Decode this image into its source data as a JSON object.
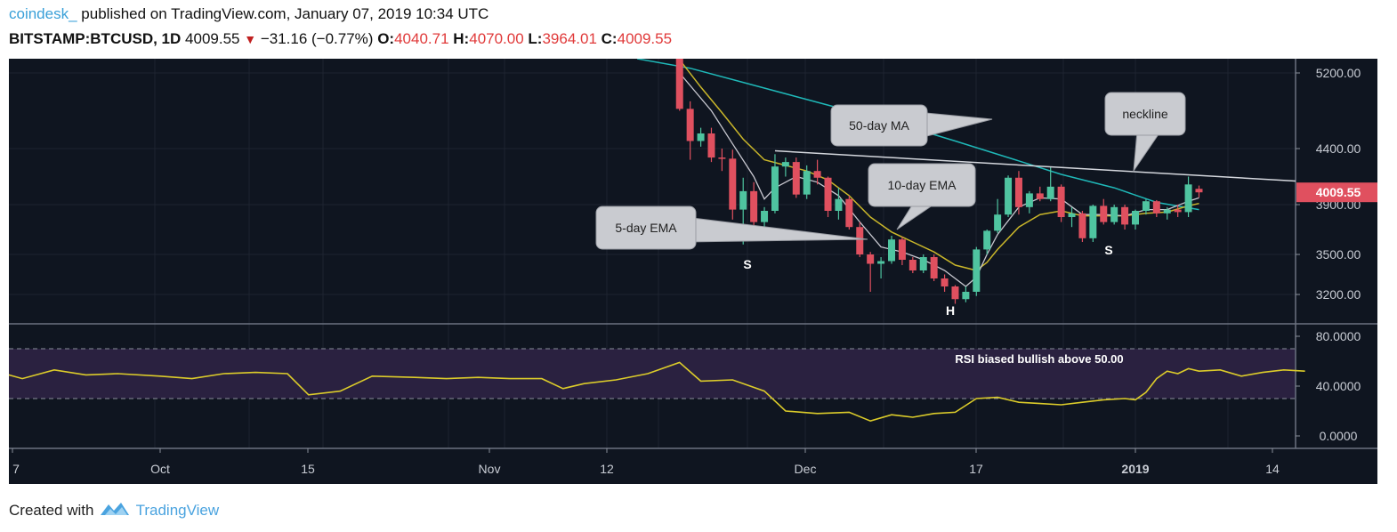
{
  "header": {
    "publisher": "coindesk_",
    "published_text": "published on TradingView.com, January 07, 2019 10:34 UTC",
    "symbol": "BITSTAMP:BTCUSD, 1D",
    "last": "4009.55",
    "change": "−31.16 (−0.77%)",
    "o_label": "O:",
    "o_value": "4040.71",
    "h_label": "H:",
    "h_value": "4070.00",
    "l_label": "L:",
    "l_value": "3964.01",
    "c_label": "C:",
    "c_value": "4009.55"
  },
  "footer": {
    "created_with": "Created with",
    "brand": "TradingView"
  },
  "colors": {
    "background": "#0f1520",
    "up": "#4fc4a0",
    "down": "#e0505f",
    "ema5": "#c8c8d0",
    "ema10": "#c9b62a",
    "ma50": "#1fb8b8",
    "rsi": "#dccc2a",
    "rsi_band": "#2a2140",
    "price_tag": "#e0505f"
  },
  "chart_data": [
    {
      "type": "candlestick",
      "title": "BITSTAMP:BTCUSD, 1D",
      "x_ticks": [
        "7",
        "Oct",
        "15",
        "Nov",
        "12",
        "Dec",
        "17",
        "2019",
        "14"
      ],
      "y_ticks": [
        "5200.00",
        "4400.00",
        "3900.00",
        "3500.00",
        "3200.00"
      ],
      "ylim": [
        3000,
        5350
      ],
      "last_price_tag": "4009.55",
      "candles": [
        [
          "2018-11-19",
          5550,
          5620,
          4800,
          4820
        ],
        [
          "2018-11-20",
          4820,
          4900,
          4300,
          4480
        ],
        [
          "2018-11-21",
          4480,
          4620,
          4420,
          4560
        ],
        [
          "2018-11-22",
          4560,
          4620,
          4280,
          4320
        ],
        [
          "2018-11-23",
          4320,
          4400,
          4200,
          4310
        ],
        [
          "2018-11-24",
          4310,
          4390,
          3780,
          3860
        ],
        [
          "2018-11-25",
          3860,
          4140,
          3580,
          4020
        ],
        [
          "2018-11-26",
          4020,
          4100,
          3700,
          3760
        ],
        [
          "2018-11-27",
          3760,
          3880,
          3680,
          3850
        ],
        [
          "2018-11-28",
          3850,
          4350,
          3830,
          4240
        ],
        [
          "2018-11-29",
          4240,
          4320,
          4150,
          4280
        ],
        [
          "2018-11-30",
          4280,
          4320,
          3960,
          3990
        ],
        [
          "2018-12-01",
          3990,
          4250,
          3950,
          4200
        ],
        [
          "2018-12-02",
          4200,
          4300,
          4080,
          4140
        ],
        [
          "2018-12-03",
          4140,
          4150,
          3800,
          3850
        ],
        [
          "2018-12-04",
          3850,
          4050,
          3780,
          3950
        ],
        [
          "2018-12-05",
          3950,
          3980,
          3700,
          3720
        ],
        [
          "2018-12-06",
          3720,
          3760,
          3480,
          3500
        ],
        [
          "2018-12-07",
          3500,
          3520,
          3220,
          3430
        ],
        [
          "2018-12-08",
          3430,
          3480,
          3320,
          3450
        ],
        [
          "2018-12-09",
          3450,
          3650,
          3430,
          3620
        ],
        [
          "2018-12-10",
          3620,
          3640,
          3420,
          3460
        ],
        [
          "2018-12-11",
          3460,
          3480,
          3360,
          3380
        ],
        [
          "2018-12-12",
          3380,
          3500,
          3360,
          3480
        ],
        [
          "2018-12-13",
          3480,
          3500,
          3300,
          3320
        ],
        [
          "2018-12-14",
          3320,
          3350,
          3220,
          3260
        ],
        [
          "2018-12-15",
          3260,
          3270,
          3140,
          3170
        ],
        [
          "2018-12-16",
          3170,
          3260,
          3150,
          3220
        ],
        [
          "2018-12-17",
          3220,
          3560,
          3190,
          3540
        ],
        [
          "2018-12-18",
          3540,
          3700,
          3500,
          3690
        ],
        [
          "2018-12-19",
          3690,
          3950,
          3670,
          3820
        ],
        [
          "2018-12-20",
          3820,
          4160,
          3800,
          4140
        ],
        [
          "2018-12-21",
          4140,
          4200,
          3820,
          3880
        ],
        [
          "2018-12-22",
          3880,
          4020,
          3830,
          4000
        ],
        [
          "2018-12-23",
          4000,
          4060,
          3930,
          3950
        ],
        [
          "2018-12-24",
          3950,
          4240,
          3930,
          4060
        ],
        [
          "2018-12-25",
          4060,
          4080,
          3760,
          3800
        ],
        [
          "2018-12-26",
          3800,
          3880,
          3720,
          3830
        ],
        [
          "2018-12-27",
          3830,
          3850,
          3600,
          3630
        ],
        [
          "2018-12-28",
          3630,
          3900,
          3600,
          3890
        ],
        [
          "2018-12-29",
          3890,
          3950,
          3740,
          3760
        ],
        [
          "2018-12-30",
          3760,
          3900,
          3740,
          3880
        ],
        [
          "2018-12-31",
          3880,
          3900,
          3700,
          3740
        ],
        [
          "2019-01-01",
          3740,
          3860,
          3700,
          3850
        ],
        [
          "2019-01-02",
          3850,
          3950,
          3820,
          3930
        ],
        [
          "2019-01-03",
          3930,
          3940,
          3800,
          3830
        ],
        [
          "2019-01-04",
          3830,
          3880,
          3780,
          3860
        ],
        [
          "2019-01-05",
          3860,
          3900,
          3800,
          3840
        ],
        [
          "2019-01-06",
          3840,
          4150,
          3800,
          4080
        ],
        [
          "2019-01-07",
          4040.71,
          4070.0,
          3964.01,
          4009.55
        ]
      ],
      "ema5": [
        [
          "2018-11-19",
          5200
        ],
        [
          "2018-11-22",
          4800
        ],
        [
          "2018-11-24",
          4450
        ],
        [
          "2018-11-26",
          4150
        ],
        [
          "2018-11-27",
          3950
        ],
        [
          "2018-11-28",
          4050
        ],
        [
          "2018-11-30",
          4150
        ],
        [
          "2018-12-02",
          4100
        ],
        [
          "2018-12-04",
          3980
        ],
        [
          "2018-12-06",
          3760
        ],
        [
          "2018-12-08",
          3560
        ],
        [
          "2018-12-10",
          3520
        ],
        [
          "2018-12-12",
          3460
        ],
        [
          "2018-12-14",
          3380
        ],
        [
          "2018-12-16",
          3260
        ],
        [
          "2018-12-17",
          3330
        ],
        [
          "2018-12-18",
          3500
        ],
        [
          "2018-12-19",
          3660
        ],
        [
          "2018-12-21",
          3880
        ],
        [
          "2018-12-23",
          3960
        ],
        [
          "2018-12-25",
          3950
        ],
        [
          "2018-12-27",
          3820
        ],
        [
          "2018-12-29",
          3820
        ],
        [
          "2018-12-31",
          3810
        ],
        [
          "2019-01-02",
          3860
        ],
        [
          "2019-01-04",
          3860
        ],
        [
          "2019-01-06",
          3930
        ],
        [
          "2019-01-07",
          3960
        ]
      ],
      "ema10": [
        [
          "2018-11-19",
          5340
        ],
        [
          "2018-11-21",
          5050
        ],
        [
          "2018-11-23",
          4780
        ],
        [
          "2018-11-25",
          4500
        ],
        [
          "2018-11-27",
          4300
        ],
        [
          "2018-11-29",
          4250
        ],
        [
          "2018-12-01",
          4200
        ],
        [
          "2018-12-03",
          4120
        ],
        [
          "2018-12-05",
          3980
        ],
        [
          "2018-12-07",
          3800
        ],
        [
          "2018-12-09",
          3680
        ],
        [
          "2018-12-11",
          3600
        ],
        [
          "2018-12-13",
          3520
        ],
        [
          "2018-12-15",
          3420
        ],
        [
          "2018-12-17",
          3380
        ],
        [
          "2018-12-18",
          3440
        ],
        [
          "2018-12-19",
          3540
        ],
        [
          "2018-12-21",
          3720
        ],
        [
          "2018-12-23",
          3820
        ],
        [
          "2018-12-25",
          3850
        ],
        [
          "2018-12-27",
          3810
        ],
        [
          "2018-12-29",
          3810
        ],
        [
          "2018-12-31",
          3810
        ],
        [
          "2019-01-02",
          3830
        ],
        [
          "2019-01-04",
          3840
        ],
        [
          "2019-01-06",
          3890
        ],
        [
          "2019-01-07",
          3910
        ]
      ],
      "ma50": [
        [
          "2018-11-15",
          5350
        ],
        [
          "2018-11-20",
          5250
        ],
        [
          "2018-11-25",
          5100
        ],
        [
          "2018-11-30",
          4950
        ],
        [
          "2018-12-05",
          4800
        ],
        [
          "2018-12-10",
          4650
        ],
        [
          "2018-12-15",
          4480
        ],
        [
          "2018-12-20",
          4320
        ],
        [
          "2018-12-25",
          4170
        ],
        [
          "2018-12-30",
          4050
        ],
        [
          "2019-01-03",
          3920
        ],
        [
          "2019-01-07",
          3860
        ]
      ],
      "neckline": [
        [
          "2018-11-28",
          4380
        ],
        [
          "2019-01-17",
          4110
        ]
      ],
      "annotations": [
        {
          "label": "50-day MA",
          "date": "2018-12-01",
          "price": 4650
        },
        {
          "label": "10-day EMA",
          "date": "2018-12-11",
          "price": 4020
        },
        {
          "label": "5-day EMA",
          "date": "2018-11-15",
          "price": 3690
        },
        {
          "label": "neckline",
          "date": "2018-12-31",
          "price": 4650
        },
        {
          "label": "S",
          "date": "2018-11-25",
          "price": 3430
        },
        {
          "label": "H",
          "date": "2018-12-15",
          "price": 3080
        },
        {
          "label": "S",
          "date": "2018-12-28",
          "price": 3520
        }
      ]
    },
    {
      "type": "line",
      "title": "RSI",
      "y_ticks": [
        "80.0000",
        "40.0000",
        "0.0000"
      ],
      "ylim": [
        -10,
        90
      ],
      "band": [
        30,
        70
      ],
      "annotation": "RSI biased bullish above 50.00",
      "series": [
        {
          "values": [
            [
              "2018-09-05",
              38
            ],
            [
              "2018-09-08",
              44
            ],
            [
              "2018-09-10",
              47
            ],
            [
              "2018-09-12",
              54
            ],
            [
              "2018-09-15",
              53
            ],
            [
              "2018-09-18",
              46
            ],
            [
              "2018-09-21",
              53
            ],
            [
              "2018-09-24",
              49
            ],
            [
              "2018-09-27",
              50
            ],
            [
              "2018-10-01",
              48
            ],
            [
              "2018-10-04",
              46
            ],
            [
              "2018-10-07",
              50
            ],
            [
              "2018-10-10",
              51
            ],
            [
              "2018-10-13",
              50
            ],
            [
              "2018-10-15",
              33
            ],
            [
              "2018-10-18",
              36
            ],
            [
              "2018-10-21",
              48
            ],
            [
              "2018-10-25",
              47
            ],
            [
              "2018-10-28",
              46
            ],
            [
              "2018-10-31",
              47
            ],
            [
              "2018-11-03",
              46
            ],
            [
              "2018-11-06",
              46
            ],
            [
              "2018-11-08",
              38
            ],
            [
              "2018-11-10",
              42
            ],
            [
              "2018-11-13",
              45
            ],
            [
              "2018-11-16",
              50
            ],
            [
              "2018-11-19",
              59
            ],
            [
              "2018-11-21",
              44
            ],
            [
              "2018-11-24",
              45
            ],
            [
              "2018-11-27",
              36
            ],
            [
              "2018-11-29",
              20
            ],
            [
              "2018-12-02",
              18
            ],
            [
              "2018-12-05",
              19
            ],
            [
              "2018-12-07",
              12
            ],
            [
              "2018-12-09",
              17
            ],
            [
              "2018-12-11",
              15
            ],
            [
              "2018-12-13",
              18
            ],
            [
              "2018-12-15",
              19
            ],
            [
              "2018-12-17",
              30
            ],
            [
              "2018-12-19",
              31
            ],
            [
              "2018-12-21",
              27
            ],
            [
              "2018-12-23",
              26
            ],
            [
              "2018-12-25",
              25
            ],
            [
              "2018-12-27",
              27
            ],
            [
              "2018-12-29",
              29
            ],
            [
              "2018-12-31",
              30
            ],
            [
              "2019-01-01",
              29
            ],
            [
              "2019-01-02",
              35
            ],
            [
              "2019-01-03",
              46
            ],
            [
              "2019-01-04",
              52
            ],
            [
              "2019-01-05",
              50
            ],
            [
              "2019-01-06",
              54
            ],
            [
              "2019-01-07",
              52
            ],
            [
              "2019-01-09",
              53
            ],
            [
              "2019-01-11",
              48
            ],
            [
              "2019-01-13",
              51
            ],
            [
              "2019-01-15",
              53
            ],
            [
              "2019-01-17",
              52
            ]
          ]
        }
      ]
    }
  ]
}
